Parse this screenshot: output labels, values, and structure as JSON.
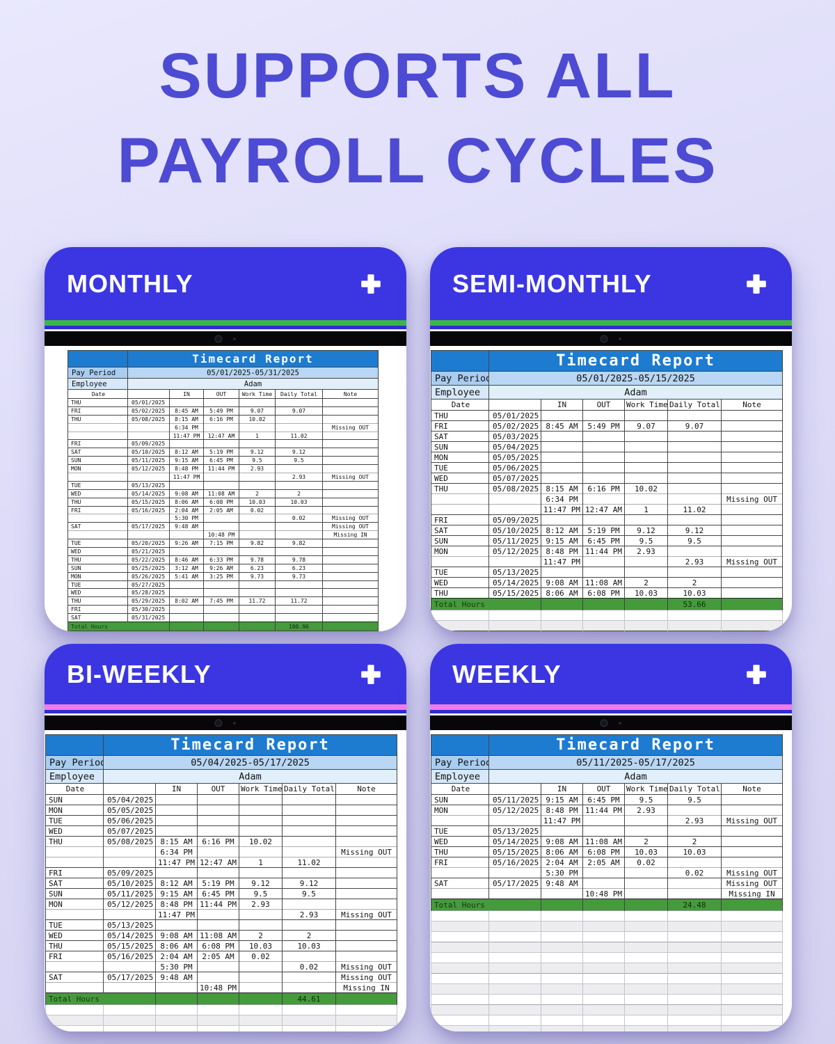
{
  "title": {
    "line1": "SUPPORTS ALL",
    "line2": "PAYROLL CYCLES"
  },
  "colors": {
    "title_text": "#4d4bd3",
    "card_header_blue": "#3b36e2",
    "green_stripe": "#3db44a",
    "pink_stripe": "#f07ce8",
    "report_header_blue": "#1d7bd0",
    "total_row_green": "#459a3c"
  },
  "icons": {
    "plus": "+",
    "camera": "camera-dot"
  },
  "report_template": {
    "title": "Timecard Report",
    "pay_period_label": "Pay Period",
    "employee_label": "Employee",
    "columns": [
      "Date",
      "",
      "IN",
      "OUT",
      "Work Time",
      "Daily Total",
      "Note"
    ],
    "total_label": "Total Hours"
  },
  "panels": [
    {
      "label": "MONTHLY",
      "stripe_color": "#3db44a",
      "pay_period": "05/01/2025-05/31/2025",
      "employee": "Adam",
      "total": "100.96",
      "empty_rows": 0,
      "rows": [
        [
          "THU",
          "05/01/2025",
          "",
          "",
          "",
          "",
          ""
        ],
        [
          "FRI",
          "05/02/2025",
          "8:45 AM",
          "5:49 PM",
          "9.07",
          "9.07",
          ""
        ],
        [
          "THU",
          "05/08/2025",
          "8:15 AM",
          "6:16 PM",
          "10.02",
          "",
          ""
        ],
        [
          "",
          "",
          "6:34 PM",
          "",
          "",
          "",
          "Missing OUT"
        ],
        [
          "",
          "",
          "11:47 PM",
          "12:47 AM",
          "1",
          "11.02",
          ""
        ],
        [
          "FRI",
          "05/09/2025",
          "",
          "",
          "",
          "",
          ""
        ],
        [
          "SAT",
          "05/10/2025",
          "8:12 AM",
          "5:19 PM",
          "9.12",
          "9.12",
          ""
        ],
        [
          "SUN",
          "05/11/2025",
          "9:15 AM",
          "6:45 PM",
          "9.5",
          "9.5",
          ""
        ],
        [
          "MON",
          "05/12/2025",
          "8:48 PM",
          "11:44 PM",
          "2.93",
          "",
          ""
        ],
        [
          "",
          "",
          "11:47 PM",
          "",
          "",
          "2.93",
          "Missing OUT"
        ],
        [
          "TUE",
          "05/13/2025",
          "",
          "",
          "",
          "",
          ""
        ],
        [
          "WED",
          "05/14/2025",
          "9:08 AM",
          "11:08 AM",
          "2",
          "2",
          ""
        ],
        [
          "THU",
          "05/15/2025",
          "8:06 AM",
          "6:08 PM",
          "10.03",
          "10.03",
          ""
        ],
        [
          "FRI",
          "05/16/2025",
          "2:04 AM",
          "2:05 AM",
          "0.02",
          "",
          ""
        ],
        [
          "",
          "",
          "5:30 PM",
          "",
          "",
          "0.02",
          "Missing OUT"
        ],
        [
          "SAT",
          "05/17/2025",
          "9:48 AM",
          "",
          "",
          "",
          "Missing OUT"
        ],
        [
          "",
          "",
          "",
          "10:48 PM",
          "",
          "",
          "Missing IN"
        ],
        [
          "TUE",
          "05/20/2025",
          "9:26 AM",
          "7:15 PM",
          "9.82",
          "9.82",
          ""
        ],
        [
          "WED",
          "05/21/2025",
          "",
          "",
          "",
          "",
          ""
        ],
        [
          "THU",
          "05/22/2025",
          "8:46 AM",
          "6:33 PM",
          "9.78",
          "9.78",
          ""
        ],
        [
          "SUN",
          "05/25/2025",
          "3:12 AM",
          "9:26 AM",
          "6.23",
          "6.23",
          ""
        ],
        [
          "MON",
          "05/26/2025",
          "5:41 AM",
          "3:25 PM",
          "9.73",
          "9.73",
          ""
        ],
        [
          "TUE",
          "05/27/2025",
          "",
          "",
          "",
          "",
          ""
        ],
        [
          "WED",
          "05/28/2025",
          "",
          "",
          "",
          "",
          ""
        ],
        [
          "THU",
          "05/29/2025",
          "8:02 AM",
          "7:45 PM",
          "11.72",
          "11.72",
          ""
        ],
        [
          "FRI",
          "05/30/2025",
          "",
          "",
          "",
          "",
          ""
        ],
        [
          "SAT",
          "05/31/2025",
          "",
          "",
          "",
          "",
          ""
        ]
      ]
    },
    {
      "label": "SEMI-MONTHLY",
      "stripe_color": "#3db44a",
      "pay_period": "05/01/2025-05/15/2025",
      "employee": "Adam",
      "total": "53.66",
      "empty_rows": 2,
      "rows": [
        [
          "THU",
          "05/01/2025",
          "",
          "",
          "",
          "",
          ""
        ],
        [
          "FRI",
          "05/02/2025",
          "8:45 AM",
          "5:49 PM",
          "9.07",
          "9.07",
          ""
        ],
        [
          "SAT",
          "05/03/2025",
          "",
          "",
          "",
          "",
          ""
        ],
        [
          "SUN",
          "05/04/2025",
          "",
          "",
          "",
          "",
          ""
        ],
        [
          "MON",
          "05/05/2025",
          "",
          "",
          "",
          "",
          ""
        ],
        [
          "TUE",
          "05/06/2025",
          "",
          "",
          "",
          "",
          ""
        ],
        [
          "WED",
          "05/07/2025",
          "",
          "",
          "",
          "",
          ""
        ],
        [
          "THU",
          "05/08/2025",
          "8:15 AM",
          "6:16 PM",
          "10.02",
          "",
          ""
        ],
        [
          "",
          "",
          "6:34 PM",
          "",
          "",
          "",
          "Missing OUT"
        ],
        [
          "",
          "",
          "11:47 PM",
          "12:47 AM",
          "1",
          "11.02",
          ""
        ],
        [
          "FRI",
          "05/09/2025",
          "",
          "",
          "",
          "",
          ""
        ],
        [
          "SAT",
          "05/10/2025",
          "8:12 AM",
          "5:19 PM",
          "9.12",
          "9.12",
          ""
        ],
        [
          "SUN",
          "05/11/2025",
          "9:15 AM",
          "6:45 PM",
          "9.5",
          "9.5",
          ""
        ],
        [
          "MON",
          "05/12/2025",
          "8:48 PM",
          "11:44 PM",
          "2.93",
          "",
          ""
        ],
        [
          "",
          "",
          "11:47 PM",
          "",
          "",
          "2.93",
          "Missing OUT"
        ],
        [
          "TUE",
          "05/13/2025",
          "",
          "",
          "",
          "",
          ""
        ],
        [
          "WED",
          "05/14/2025",
          "9:08 AM",
          "11:08 AM",
          "2",
          "2",
          ""
        ],
        [
          "THU",
          "05/15/2025",
          "8:06 AM",
          "6:08 PM",
          "10.03",
          "10.03",
          ""
        ]
      ]
    },
    {
      "label": "BI-WEEKLY",
      "stripe_color": "#f07ce8",
      "pay_period": "05/04/2025-05/17/2025",
      "employee": "Adam",
      "total": "44.61",
      "empty_rows": 3,
      "rows": [
        [
          "SUN",
          "05/04/2025",
          "",
          "",
          "",
          "",
          ""
        ],
        [
          "MON",
          "05/05/2025",
          "",
          "",
          "",
          "",
          ""
        ],
        [
          "TUE",
          "05/06/2025",
          "",
          "",
          "",
          "",
          ""
        ],
        [
          "WED",
          "05/07/2025",
          "",
          "",
          "",
          "",
          ""
        ],
        [
          "THU",
          "05/08/2025",
          "8:15 AM",
          "6:16 PM",
          "10.02",
          "",
          ""
        ],
        [
          "",
          "",
          "6:34 PM",
          "",
          "",
          "",
          "Missing OUT"
        ],
        [
          "",
          "",
          "11:47 PM",
          "12:47 AM",
          "1",
          "11.02",
          ""
        ],
        [
          "FRI",
          "05/09/2025",
          "",
          "",
          "",
          "",
          ""
        ],
        [
          "SAT",
          "05/10/2025",
          "8:12 AM",
          "5:19 PM",
          "9.12",
          "9.12",
          ""
        ],
        [
          "SUN",
          "05/11/2025",
          "9:15 AM",
          "6:45 PM",
          "9.5",
          "9.5",
          ""
        ],
        [
          "MON",
          "05/12/2025",
          "8:48 PM",
          "11:44 PM",
          "2.93",
          "",
          ""
        ],
        [
          "",
          "",
          "11:47 PM",
          "",
          "",
          "2.93",
          "Missing OUT"
        ],
        [
          "TUE",
          "05/13/2025",
          "",
          "",
          "",
          "",
          ""
        ],
        [
          "WED",
          "05/14/2025",
          "9:08 AM",
          "11:08 AM",
          "2",
          "2",
          ""
        ],
        [
          "THU",
          "05/15/2025",
          "8:06 AM",
          "6:08 PM",
          "10.03",
          "10.03",
          ""
        ],
        [
          "FRI",
          "05/16/2025",
          "2:04 AM",
          "2:05 AM",
          "0.02",
          "",
          ""
        ],
        [
          "",
          "",
          "5:30 PM",
          "",
          "",
          "0.02",
          "Missing OUT"
        ],
        [
          "SAT",
          "05/17/2025",
          "9:48 AM",
          "",
          "",
          "",
          "Missing OUT"
        ],
        [
          "",
          "",
          "",
          "10:48 PM",
          "",
          "",
          "Missing IN"
        ]
      ]
    },
    {
      "label": "WEEKLY",
      "stripe_color": "#f07ce8",
      "pay_period": "05/11/2025-05/17/2025",
      "employee": "Adam",
      "total": "24.48",
      "empty_rows": 12,
      "rows": [
        [
          "SUN",
          "05/11/2025",
          "9:15 AM",
          "6:45 PM",
          "9.5",
          "9.5",
          ""
        ],
        [
          "MON",
          "05/12/2025",
          "8:48 PM",
          "11:44 PM",
          "2.93",
          "",
          ""
        ],
        [
          "",
          "",
          "11:47 PM",
          "",
          "",
          "2.93",
          "Missing OUT"
        ],
        [
          "TUE",
          "05/13/2025",
          "",
          "",
          "",
          "",
          ""
        ],
        [
          "WED",
          "05/14/2025",
          "9:08 AM",
          "11:08 AM",
          "2",
          "2",
          ""
        ],
        [
          "THU",
          "05/15/2025",
          "8:06 AM",
          "6:08 PM",
          "10.03",
          "10.03",
          ""
        ],
        [
          "FRI",
          "05/16/2025",
          "2:04 AM",
          "2:05 AM",
          "0.02",
          "",
          ""
        ],
        [
          "",
          "",
          "5:30 PM",
          "",
          "",
          "0.02",
          "Missing OUT"
        ],
        [
          "SAT",
          "05/17/2025",
          "9:48 AM",
          "",
          "",
          "",
          "Missing OUT"
        ],
        [
          "",
          "",
          "",
          "10:48 PM",
          "",
          "",
          "Missing IN"
        ]
      ]
    }
  ]
}
